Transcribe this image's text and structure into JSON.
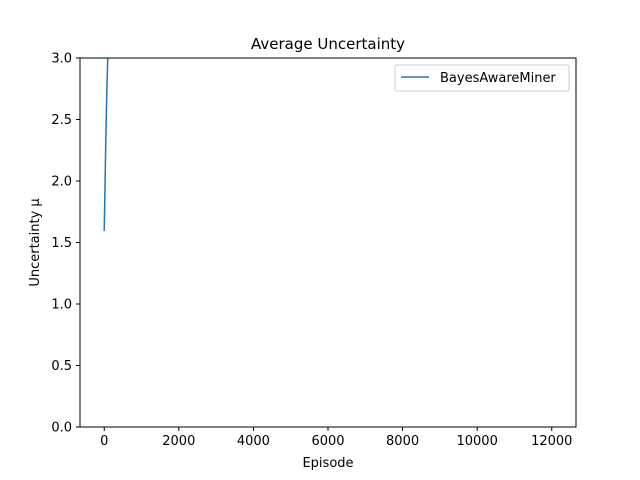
{
  "chart_data": {
    "type": "line",
    "title": "Average Uncertainty",
    "xlabel": "Episode",
    "ylabel": "Uncertainty μ",
    "xlim": [
      -650,
      12650
    ],
    "ylim": [
      0,
      3.0
    ],
    "xticks": [
      0,
      2000,
      4000,
      6000,
      8000,
      10000,
      12000
    ],
    "yticks": [
      0.0,
      0.5,
      1.0,
      1.5,
      2.0,
      2.5,
      3.0
    ],
    "xtick_labels": [
      "0",
      "2000",
      "4000",
      "6000",
      "8000",
      "10000",
      "12000"
    ],
    "ytick_labels": [
      "0.0",
      "0.5",
      "1.0",
      "1.5",
      "2.0",
      "2.5",
      "3.0"
    ],
    "grid": false,
    "legend": "top-right",
    "series": [
      {
        "name": "BayesAwareMiner",
        "color": "#1f77b4",
        "x": [
          0,
          20,
          40,
          60,
          80,
          100,
          110
        ],
        "y": [
          1.6,
          1.95,
          2.3,
          2.6,
          2.85,
          3.05,
          3.2
        ]
      }
    ]
  }
}
